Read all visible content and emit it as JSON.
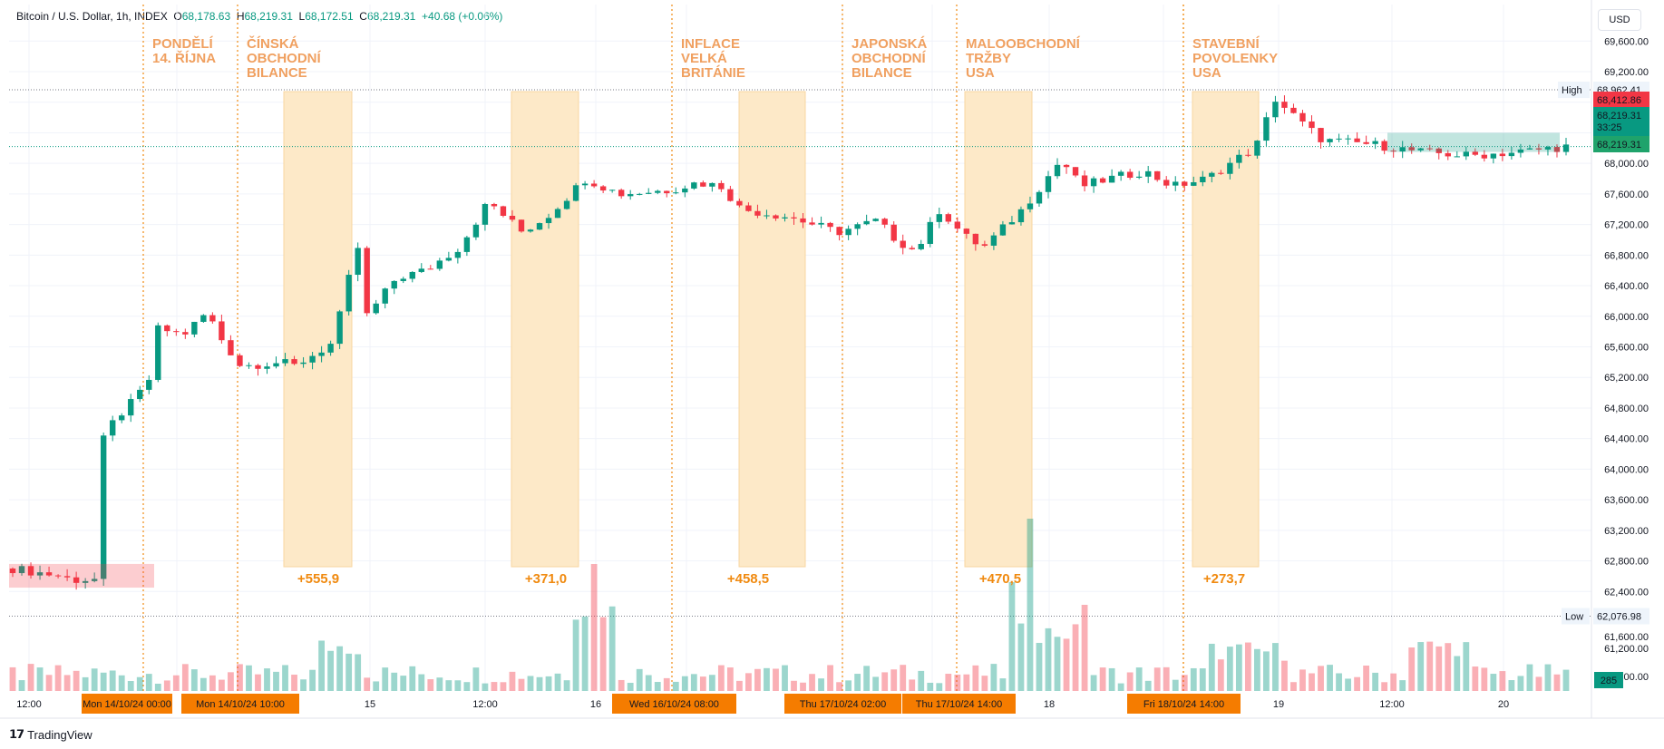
{
  "header": {
    "symbol": "Bitcoin / U.S. Dollar, 1h, INDEX",
    "o_label": "O",
    "o_value": "68,178.63",
    "h_label": "H",
    "h_value": "68,219.31",
    "l_label": "L",
    "l_value": "68,172.51",
    "c_label": "C",
    "c_value": "68,219.31",
    "change": "+40.68 (+0.06%)"
  },
  "currency": "USD",
  "brand": "TradingView",
  "colors": {
    "up": "#089981",
    "down": "#f23645",
    "event_text": "#f0a060",
    "delta_text": "#f08a10",
    "highlight": "#fde9c8",
    "tag": "#f57c00"
  },
  "chart_data": {
    "type": "candlestick",
    "timeframe": "1h",
    "ylim": [
      61300,
      69900
    ],
    "y_ticks": [
      "69,600.00",
      "69,200.00",
      "68,800.00",
      "68,400.00",
      "68,000.00",
      "67,600.00",
      "67,200.00",
      "66,800.00",
      "66,400.00",
      "66,000.00",
      "65,600.00",
      "65,200.00",
      "64,800.00",
      "64,400.00",
      "64,000.00",
      "63,600.00",
      "63,200.00",
      "62,800.00",
      "62,400.00",
      "61,600.00",
      "61,200.00",
      "60,800.00"
    ],
    "x_ticks": [
      "12:00",
      "15",
      "12:00",
      "16",
      "18",
      "19",
      "12:00",
      "20"
    ],
    "high_line": {
      "label": "High",
      "value": "68,962.41"
    },
    "low_line": {
      "label": "Low",
      "value": "62,076.98"
    },
    "price_tags": [
      {
        "value": "68,412.86",
        "kind": "down"
      },
      {
        "value": "68,219.31",
        "sub": "33:25",
        "kind": "up"
      },
      {
        "value": "68,219.31",
        "kind": "up-light"
      }
    ],
    "volume_tag": "285",
    "time_tags": [
      "Mon 14/10/24  00:00",
      "Mon 14/10/24  10:00",
      "Wed 16/10/24  08:00",
      "Thu 17/10/24  02:00",
      "Thu 17/10/24  14:00",
      "Fri 18/10/24  14:00"
    ],
    "events": [
      {
        "lines": [
          "PONDĚLÍ",
          "14. ŘÍJNA"
        ],
        "delta": ""
      },
      {
        "lines": [
          "ČÍNSKÁ",
          "OBCHODNÍ",
          "BILANCE"
        ],
        "delta": "+555,9"
      },
      {
        "lines": [
          "INFLACE",
          "VELKÁ",
          "BRITÁNIE"
        ],
        "delta": "+458,5"
      },
      {
        "lines": [
          "JAPONSKÁ",
          "OBCHODNÍ",
          "BILANCE"
        ],
        "delta": "+470,5"
      },
      {
        "lines": [
          "MALOOBCHODNÍ",
          "TRŽBY",
          "USA"
        ],
        "delta": "+273,7"
      },
      {
        "lines": [
          "STAVEBNÍ",
          "POVOLENKY",
          "USA"
        ],
        "delta": ""
      }
    ],
    "extra_delta": "+371,0"
  }
}
